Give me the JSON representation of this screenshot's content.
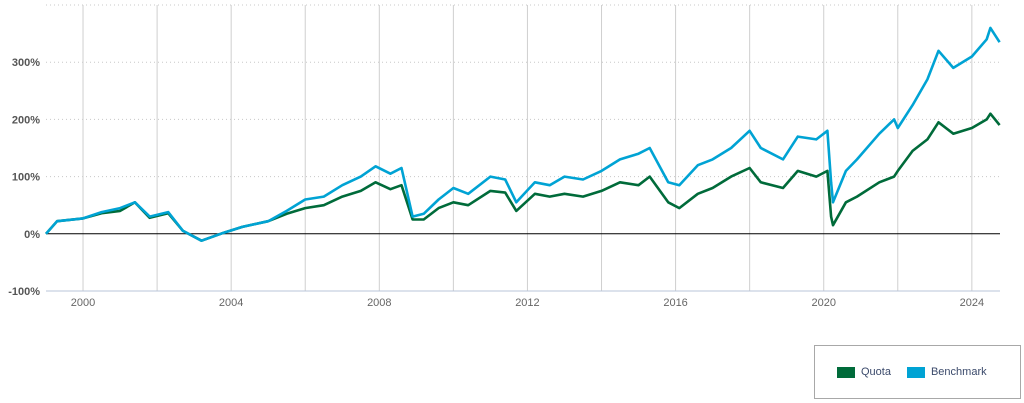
{
  "chart_data": {
    "type": "line",
    "title": "",
    "xlabel": "",
    "ylabel": "",
    "xlim": [
      1999.0,
      2024.76
    ],
    "ylim": [
      -100,
      400
    ],
    "yticks": [
      -100,
      0,
      100,
      200,
      300
    ],
    "ytick_labels": [
      "-100%",
      "0%",
      "100%",
      "200%",
      "300%"
    ],
    "xticks": [
      2000,
      2004,
      2008,
      2012,
      2016,
      2020,
      2024
    ],
    "xtick_labels": [
      "2000",
      "2004",
      "2008",
      "2012",
      "2016",
      "2020",
      "2024"
    ],
    "x_grid_years": [
      2000,
      2002,
      2004,
      2006,
      2008,
      2010,
      2012,
      2014,
      2016,
      2018,
      2020,
      2022,
      2024
    ],
    "grid": true,
    "legend_position": "bottom-right",
    "x": [
      1999.0,
      1999.3,
      2000.0,
      2000.5,
      2001.0,
      2001.4,
      2001.8,
      2002.3,
      2002.7,
      2003.2,
      2003.8,
      2004.3,
      2005.0,
      2005.5,
      2006.0,
      2006.5,
      2007.0,
      2007.5,
      2007.9,
      2008.3,
      2008.6,
      2008.9,
      2009.2,
      2009.6,
      2010.0,
      2010.4,
      2011.0,
      2011.4,
      2011.7,
      2012.2,
      2012.6,
      2013.0,
      2013.5,
      2014.0,
      2014.5,
      2015.0,
      2015.3,
      2015.8,
      2016.1,
      2016.6,
      2017.0,
      2017.5,
      2018.0,
      2018.3,
      2018.9,
      2019.3,
      2019.8,
      2020.1,
      2020.2,
      2020.25,
      2020.6,
      2020.9,
      2021.5,
      2021.9,
      2022.0,
      2022.4,
      2022.8,
      2023.1,
      2023.5,
      2024.0,
      2024.4,
      2024.5,
      2024.75
    ],
    "series": [
      {
        "name": "Quota",
        "color": "#006b3a",
        "values": [
          0,
          22,
          27,
          36,
          40,
          55,
          28,
          36,
          5,
          -12,
          2,
          12,
          22,
          35,
          45,
          50,
          65,
          75,
          90,
          78,
          85,
          25,
          25,
          45,
          55,
          50,
          75,
          72,
          40,
          70,
          65,
          70,
          65,
          75,
          90,
          85,
          100,
          55,
          45,
          70,
          80,
          100,
          115,
          90,
          80,
          110,
          100,
          110,
          30,
          15,
          55,
          65,
          90,
          100,
          110,
          145,
          165,
          195,
          175,
          185,
          200,
          210,
          190
        ]
      },
      {
        "name": "Benchmark",
        "color": "#00a3d4",
        "values": [
          0,
          22,
          27,
          38,
          45,
          55,
          30,
          38,
          5,
          -12,
          2,
          12,
          22,
          40,
          60,
          65,
          85,
          100,
          118,
          105,
          115,
          30,
          35,
          60,
          80,
          70,
          100,
          95,
          55,
          90,
          85,
          100,
          95,
          110,
          130,
          140,
          150,
          90,
          85,
          120,
          130,
          150,
          180,
          150,
          130,
          170,
          165,
          180,
          90,
          55,
          110,
          130,
          175,
          200,
          185,
          225,
          270,
          320,
          290,
          310,
          340,
          360,
          335
        ]
      }
    ]
  }
}
